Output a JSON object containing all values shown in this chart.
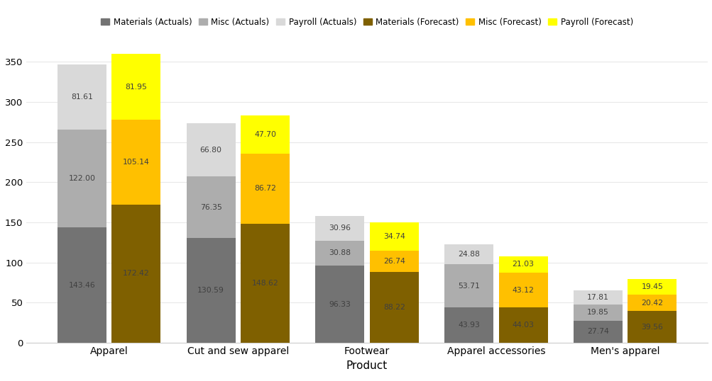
{
  "categories": [
    "Apparel",
    "Cut and sew apparel",
    "Footwear",
    "Apparel accessories",
    "Men's apparel"
  ],
  "actuals": {
    "Materials": [
      143.46,
      130.59,
      96.33,
      43.93,
      27.74
    ],
    "Misc": [
      122.0,
      76.35,
      30.88,
      53.71,
      19.85
    ],
    "Payroll": [
      81.61,
      66.8,
      30.96,
      24.88,
      17.81
    ]
  },
  "forecast": {
    "Materials": [
      172.42,
      148.62,
      88.22,
      44.03,
      39.56
    ],
    "Misc": [
      105.14,
      86.72,
      26.74,
      43.12,
      20.42
    ],
    "Payroll": [
      81.95,
      47.7,
      34.74,
      21.03,
      19.45
    ]
  },
  "colors": {
    "Materials_Actuals": "#737373",
    "Misc_Actuals": "#adadad",
    "Payroll_Actuals": "#d9d9d9",
    "Materials_Forecast": "#7f6000",
    "Misc_Forecast": "#ffc000",
    "Payroll_Forecast": "#ffff00"
  },
  "legend_labels": [
    "Materials (Actuals)",
    "Misc (Actuals)",
    "Payroll (Actuals)",
    "Materials (Forecast)",
    "Misc (Forecast)",
    "Payroll (Forecast)"
  ],
  "xlabel": "Product",
  "ylim": [
    0,
    370
  ],
  "yticks": [
    0,
    50,
    100,
    150,
    200,
    250,
    300,
    350
  ],
  "background_color": "#ffffff",
  "bar_width": 0.38,
  "bar_gap": 0.04
}
